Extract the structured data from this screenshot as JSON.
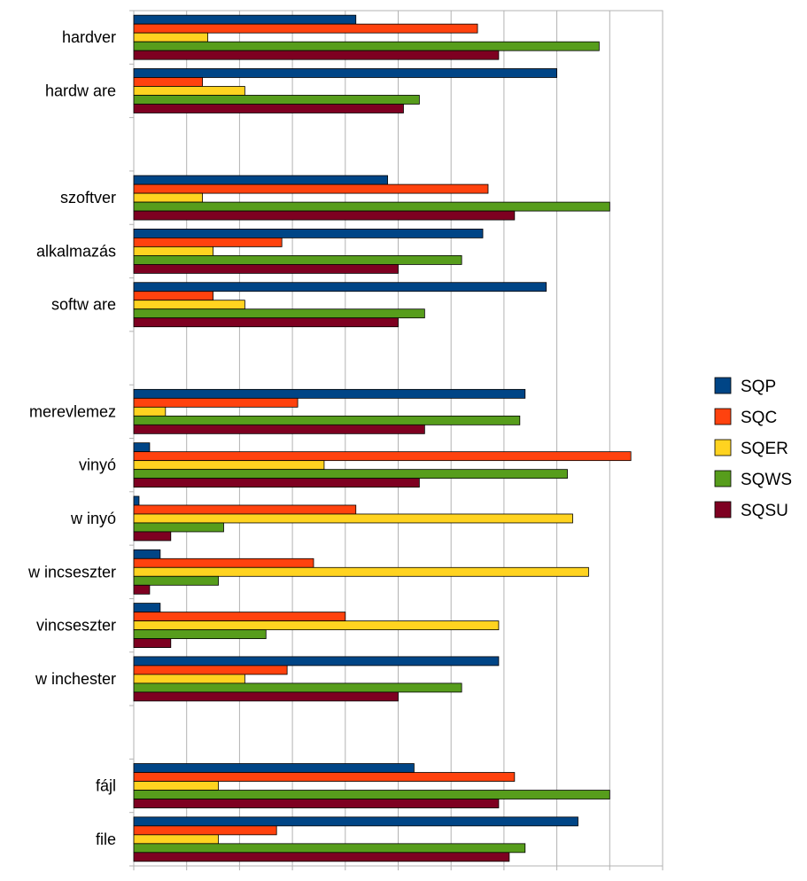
{
  "chart_data": {
    "type": "bar",
    "orientation": "horizontal",
    "categories": [
      "hardver",
      "hardw are",
      "",
      "szoftver",
      "alkalmazás",
      "softw are",
      "",
      "merevlemez",
      "vinyó",
      "w inyó",
      "w incseszter",
      "vincseszter",
      "w inchester",
      "",
      "fájl",
      "file"
    ],
    "series": [
      {
        "name": "SQP",
        "color": "#004586",
        "values": [
          42,
          80,
          null,
          48,
          66,
          78,
          null,
          74,
          3,
          1,
          5,
          5,
          69,
          null,
          53,
          84
        ]
      },
      {
        "name": "SQC",
        "color": "#ff420e",
        "values": [
          65,
          13,
          null,
          67,
          28,
          15,
          null,
          31,
          94,
          42,
          34,
          40,
          29,
          null,
          72,
          27
        ]
      },
      {
        "name": "SQER",
        "color": "#ffd320",
        "values": [
          14,
          21,
          null,
          13,
          15,
          21,
          null,
          6,
          36,
          83,
          86,
          69,
          21,
          null,
          16,
          16
        ]
      },
      {
        "name": "SQWS",
        "color": "#579d1c",
        "values": [
          88,
          54,
          null,
          90,
          62,
          55,
          null,
          73,
          82,
          17,
          16,
          25,
          62,
          null,
          90,
          74
        ]
      },
      {
        "name": "SQSU",
        "color": "#7e0021",
        "values": [
          69,
          51,
          null,
          72,
          50,
          50,
          null,
          55,
          54,
          7,
          3,
          7,
          50,
          null,
          69,
          71
        ]
      }
    ],
    "xticks": [
      "0%",
      "10%",
      "20%",
      "30%",
      "40%",
      "50%",
      "60%",
      "70%",
      "80%",
      "90%",
      "100%"
    ],
    "xlim": [
      0,
      100
    ],
    "grid": true,
    "legend_position": "right"
  }
}
